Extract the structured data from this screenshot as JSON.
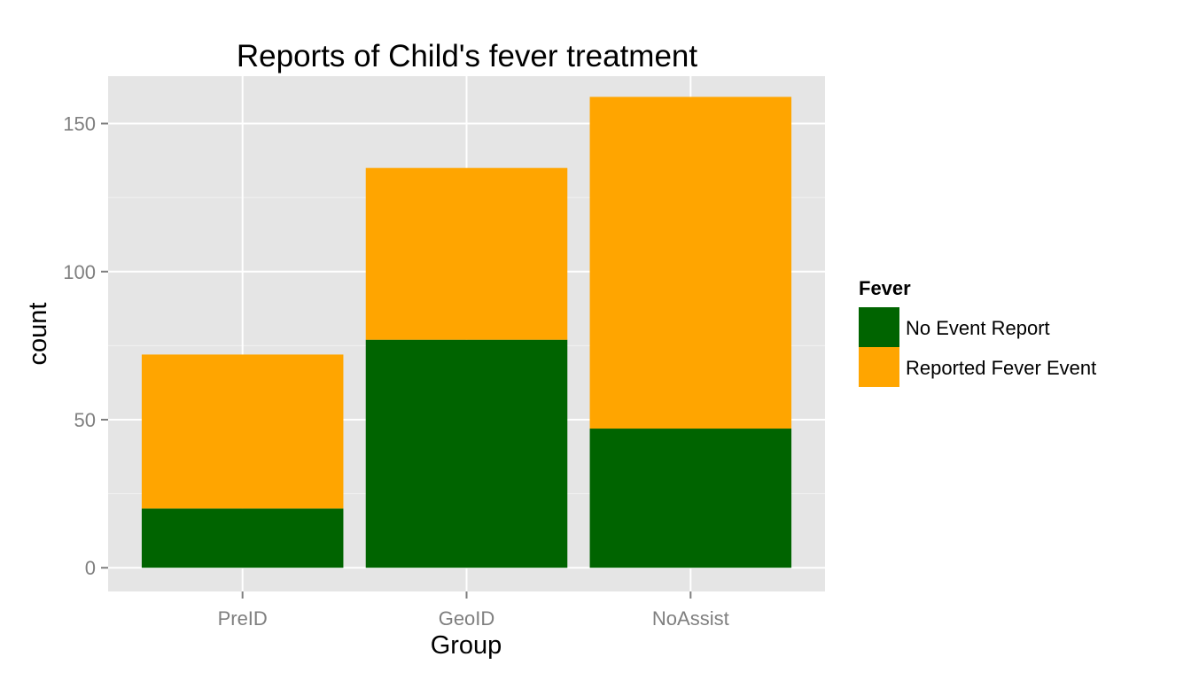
{
  "chart_data": {
    "type": "bar",
    "stacked": true,
    "title": "Reports of Child's fever treatment",
    "xlabel": "Group",
    "ylabel": "count",
    "categories": [
      "PreID",
      "GeoID",
      "NoAssist"
    ],
    "series": [
      {
        "name": "No Event Report",
        "values": [
          20,
          77,
          47
        ],
        "color": "#006400"
      },
      {
        "name": "Reported Fever Event",
        "values": [
          52,
          58,
          112
        ],
        "color": "#FFA500"
      }
    ],
    "ylim": [
      -8,
      166
    ],
    "y_ticks": [
      0,
      50,
      100,
      150
    ],
    "grid": true,
    "legend": {
      "title": "Fever",
      "position": "right"
    },
    "panel_background": "#E5E5E5"
  }
}
